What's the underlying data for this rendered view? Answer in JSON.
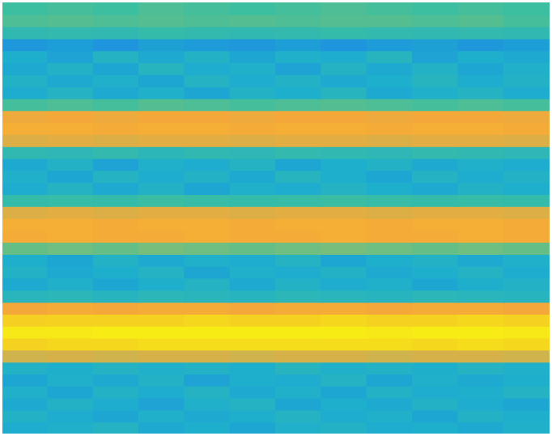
{
  "chart_data": {
    "type": "heatmap",
    "tick_labels": false,
    "grid": false,
    "cells": [
      [
        0.55,
        0.56,
        0.55,
        0.57,
        0.56,
        0.55,
        0.56,
        0.57,
        0.56,
        0.55,
        0.56,
        0.55
      ],
      [
        0.57,
        0.58,
        0.57,
        0.58,
        0.57,
        0.58,
        0.57,
        0.58,
        0.58,
        0.57,
        0.58,
        0.56
      ],
      [
        0.5,
        0.51,
        0.5,
        0.52,
        0.51,
        0.5,
        0.51,
        0.52,
        0.51,
        0.5,
        0.51,
        0.5
      ],
      [
        0.34,
        0.36,
        0.33,
        0.37,
        0.35,
        0.34,
        0.36,
        0.33,
        0.35,
        0.37,
        0.34,
        0.36
      ],
      [
        0.42,
        0.38,
        0.45,
        0.4,
        0.44,
        0.39,
        0.43,
        0.41,
        0.46,
        0.38,
        0.42,
        0.4
      ],
      [
        0.4,
        0.44,
        0.39,
        0.46,
        0.41,
        0.43,
        0.38,
        0.45,
        0.4,
        0.44,
        0.39,
        0.43
      ],
      [
        0.44,
        0.4,
        0.43,
        0.39,
        0.45,
        0.41,
        0.44,
        0.4,
        0.42,
        0.46,
        0.41,
        0.44
      ],
      [
        0.41,
        0.45,
        0.4,
        0.43,
        0.39,
        0.44,
        0.42,
        0.46,
        0.4,
        0.43,
        0.45,
        0.41
      ],
      [
        0.56,
        0.57,
        0.56,
        0.58,
        0.57,
        0.56,
        0.57,
        0.58,
        0.57,
        0.56,
        0.57,
        0.56
      ],
      [
        0.79,
        0.8,
        0.79,
        0.8,
        0.8,
        0.79,
        0.8,
        0.8,
        0.79,
        0.8,
        0.8,
        0.79
      ],
      [
        0.82,
        0.82,
        0.81,
        0.82,
        0.82,
        0.81,
        0.82,
        0.82,
        0.81,
        0.82,
        0.82,
        0.81
      ],
      [
        0.76,
        0.77,
        0.76,
        0.77,
        0.77,
        0.76,
        0.77,
        0.77,
        0.76,
        0.77,
        0.77,
        0.76
      ],
      [
        0.5,
        0.49,
        0.51,
        0.48,
        0.5,
        0.49,
        0.51,
        0.5,
        0.49,
        0.51,
        0.5,
        0.49
      ],
      [
        0.4,
        0.44,
        0.38,
        0.43,
        0.41,
        0.45,
        0.39,
        0.42,
        0.44,
        0.4,
        0.43,
        0.41
      ],
      [
        0.43,
        0.39,
        0.45,
        0.41,
        0.44,
        0.4,
        0.46,
        0.42,
        0.39,
        0.45,
        0.41,
        0.44
      ],
      [
        0.41,
        0.45,
        0.4,
        0.44,
        0.39,
        0.43,
        0.41,
        0.45,
        0.42,
        0.4,
        0.44,
        0.42
      ],
      [
        0.52,
        0.53,
        0.52,
        0.54,
        0.53,
        0.52,
        0.53,
        0.54,
        0.53,
        0.52,
        0.53,
        0.52
      ],
      [
        0.76,
        0.77,
        0.76,
        0.77,
        0.77,
        0.76,
        0.77,
        0.77,
        0.76,
        0.77,
        0.77,
        0.76
      ],
      [
        0.82,
        0.82,
        0.81,
        0.82,
        0.82,
        0.81,
        0.82,
        0.82,
        0.81,
        0.82,
        0.82,
        0.81
      ],
      [
        0.81,
        0.82,
        0.81,
        0.81,
        0.82,
        0.81,
        0.81,
        0.82,
        0.81,
        0.81,
        0.82,
        0.81
      ],
      [
        0.6,
        0.61,
        0.6,
        0.62,
        0.61,
        0.6,
        0.61,
        0.62,
        0.61,
        0.6,
        0.61,
        0.6
      ],
      [
        0.42,
        0.39,
        0.44,
        0.4,
        0.43,
        0.41,
        0.45,
        0.39,
        0.42,
        0.44,
        0.4,
        0.43
      ],
      [
        0.44,
        0.4,
        0.42,
        0.45,
        0.39,
        0.43,
        0.41,
        0.44,
        0.4,
        0.42,
        0.45,
        0.41
      ],
      [
        0.4,
        0.43,
        0.39,
        0.42,
        0.45,
        0.4,
        0.44,
        0.41,
        0.43,
        0.39,
        0.42,
        0.44
      ],
      [
        0.47,
        0.48,
        0.46,
        0.48,
        0.47,
        0.46,
        0.48,
        0.47,
        0.46,
        0.48,
        0.47,
        0.46
      ],
      [
        0.8,
        0.81,
        0.8,
        0.81,
        0.81,
        0.8,
        0.81,
        0.81,
        0.8,
        0.81,
        0.81,
        0.8
      ],
      [
        0.92,
        0.93,
        0.93,
        0.93,
        0.94,
        0.93,
        0.93,
        0.94,
        0.93,
        0.93,
        0.94,
        0.93
      ],
      [
        0.97,
        0.97,
        0.98,
        0.98,
        0.98,
        0.98,
        0.98,
        0.98,
        0.97,
        0.98,
        0.98,
        0.97
      ],
      [
        0.93,
        0.94,
        0.94,
        0.95,
        0.95,
        0.95,
        0.95,
        0.95,
        0.95,
        0.94,
        0.95,
        0.94
      ],
      [
        0.74,
        0.75,
        0.74,
        0.75,
        0.75,
        0.74,
        0.75,
        0.75,
        0.74,
        0.75,
        0.75,
        0.74
      ],
      [
        0.44,
        0.42,
        0.45,
        0.43,
        0.44,
        0.42,
        0.46,
        0.43,
        0.44,
        0.42,
        0.45,
        0.43
      ],
      [
        0.39,
        0.43,
        0.4,
        0.44,
        0.38,
        0.42,
        0.41,
        0.45,
        0.39,
        0.43,
        0.4,
        0.42
      ],
      [
        0.43,
        0.39,
        0.44,
        0.41,
        0.45,
        0.4,
        0.43,
        0.39,
        0.44,
        0.41,
        0.42,
        0.45
      ],
      [
        0.4,
        0.44,
        0.41,
        0.38,
        0.43,
        0.45,
        0.39,
        0.42,
        0.4,
        0.44,
        0.41,
        0.39
      ],
      [
        0.44,
        0.41,
        0.39,
        0.43,
        0.4,
        0.42,
        0.45,
        0.41,
        0.43,
        0.39,
        0.44,
        0.42
      ],
      [
        0.41,
        0.43,
        0.45,
        0.4,
        0.42,
        0.39,
        0.43,
        0.44,
        0.41,
        0.42,
        0.4,
        0.43
      ]
    ]
  }
}
